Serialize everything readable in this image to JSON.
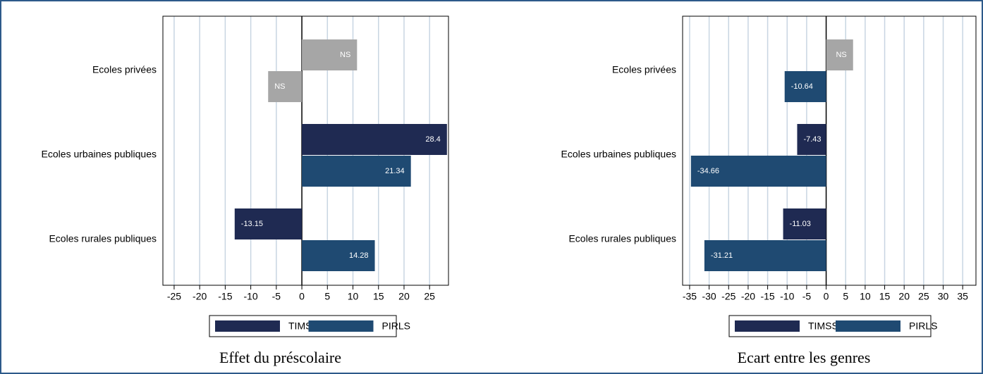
{
  "chart_data": [
    {
      "type": "bar",
      "orientation": "horizontal",
      "title": "Effet du préscolaire",
      "categories": [
        "Ecoles privées",
        "Ecoles urbaines publiques",
        "Ecoles rurales publiques"
      ],
      "series": [
        {
          "name": "TIMSS",
          "color": "#1f2a52",
          "point_colors": [
            "#a6a6a6",
            "#1f2a52",
            "#1f2a52"
          ],
          "values": [
            10.8,
            28.4,
            -13.15
          ],
          "value_labels": [
            "NS",
            "28.4",
            "-13.15"
          ]
        },
        {
          "name": "PIRLS",
          "color": "#1f4a72",
          "point_colors": [
            "#a6a6a6",
            "#1f4a72",
            "#1f4a72"
          ],
          "values": [
            -6.6,
            21.34,
            14.28
          ],
          "value_labels": [
            "NS",
            "21.34",
            "14.28"
          ]
        }
      ],
      "xlim": [
        -27.2,
        28.7
      ],
      "xticks": [
        -25,
        -20,
        -15,
        -10,
        -5,
        0,
        5,
        10,
        15,
        20,
        25
      ],
      "grid": true,
      "legend": "bottom"
    },
    {
      "type": "bar",
      "orientation": "horizontal",
      "title": "Ecart entre les genres",
      "categories": [
        "Ecoles privées",
        "Ecoles urbaines publiques",
        "Ecoles rurales publiques"
      ],
      "series": [
        {
          "name": "TIMSS",
          "color": "#1f2a52",
          "point_colors": [
            "#a6a6a6",
            "#1f2a52",
            "#1f2a52"
          ],
          "values": [
            6.9,
            -7.43,
            -11.03
          ],
          "value_labels": [
            "NS",
            "-7.43",
            "-11.03"
          ]
        },
        {
          "name": "PIRLS",
          "color": "#1f4a72",
          "point_colors": [
            "#1f4a72",
            "#1f4a72",
            "#1f4a72"
          ],
          "values": [
            -10.64,
            -34.66,
            -31.21
          ],
          "value_labels": [
            "-10.64",
            "-34.66",
            "-31.21"
          ]
        }
      ],
      "xlim": [
        -36.8,
        38.4
      ],
      "xticks": [
        -35,
        -30,
        -25,
        -20,
        -15,
        -10,
        -5,
        0,
        5,
        10,
        15,
        20,
        25,
        30,
        35
      ],
      "grid": true,
      "legend": "bottom"
    }
  ]
}
